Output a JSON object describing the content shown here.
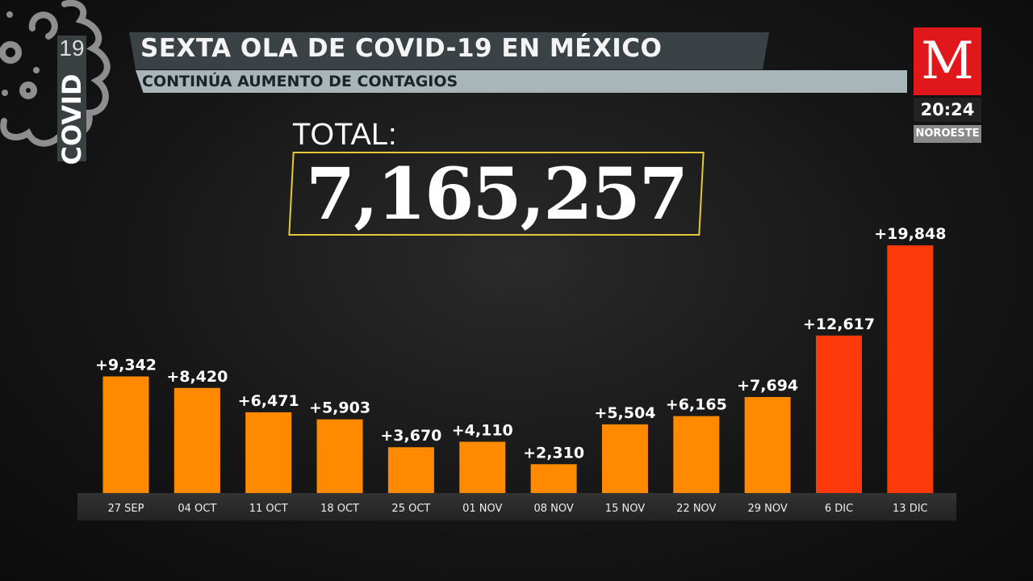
{
  "badge": {
    "number": "19",
    "word": "COVID"
  },
  "header": {
    "title": "SEXTA OLA DE COVID-19 EN MÉXICO",
    "subtitle": "CONTINÚA AUMENTO DE CONTAGIOS"
  },
  "channel": {
    "logo": "M",
    "time": "20:24",
    "region": "NOROESTE"
  },
  "total": {
    "label": "TOTAL:",
    "value": "7,165,257"
  },
  "colors": {
    "orange": "#ff8a00",
    "red": "#ff3a0a"
  },
  "chart_data": {
    "type": "bar",
    "title": "SEXTA OLA DE COVID-19 EN MÉXICO",
    "categories": [
      "27 SEP",
      "04 OCT",
      "11 OCT",
      "18 OCT",
      "25 OCT",
      "01 NOV",
      "08 NOV",
      "15 NOV",
      "22 NOV",
      "29 NOV",
      "6 DIC",
      "13 DIC"
    ],
    "values": [
      9342,
      8420,
      6471,
      5903,
      3670,
      4110,
      2310,
      5504,
      6165,
      7694,
      12617,
      19848
    ],
    "labels": [
      "+9,342",
      "+8,420",
      "+6,471",
      "+5,903",
      "+3,670",
      "+4,110",
      "+2,310",
      "+5,504",
      "+6,165",
      "+7,694",
      "+12,617",
      "+19,848"
    ],
    "highlight": [
      false,
      false,
      false,
      false,
      false,
      false,
      false,
      false,
      false,
      false,
      true,
      true
    ],
    "xlabel": "",
    "ylabel": "",
    "ylim": [
      0,
      19848
    ]
  }
}
